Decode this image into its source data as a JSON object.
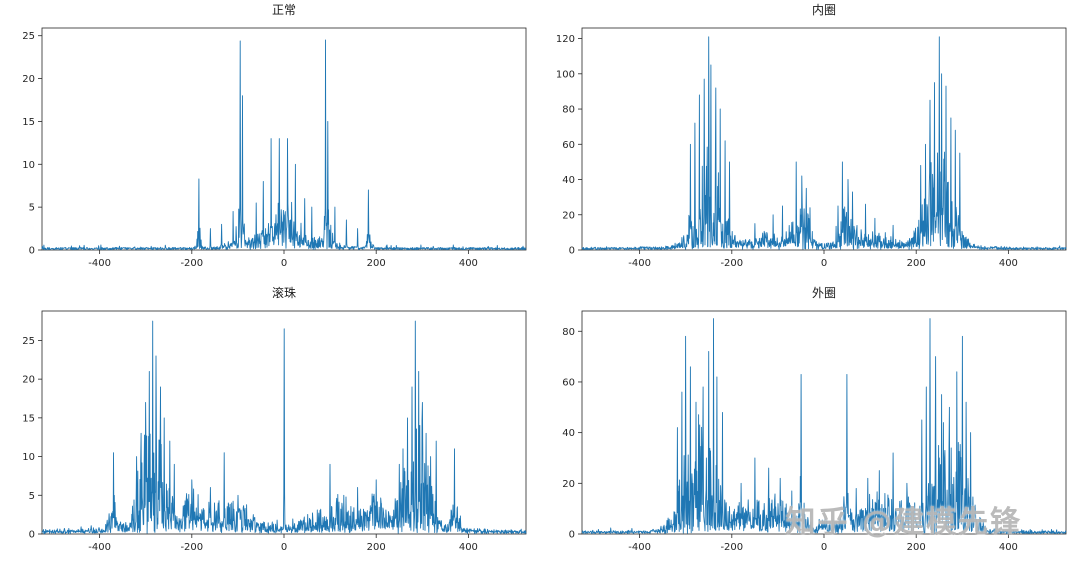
{
  "watermark": {
    "text": "知乎 @建模先锋"
  },
  "colors": {
    "line": "#1f77b4",
    "axis": "#262626",
    "background": "#ffffff"
  },
  "chart_data": [
    {
      "type": "line",
      "title": "正常",
      "xlabel": "",
      "ylabel": "",
      "xlim": [
        -525,
        525
      ],
      "ylim": [
        0,
        25.9
      ],
      "xticks": [
        -400,
        -200,
        0,
        200,
        400
      ],
      "yticks": [
        0,
        5,
        10,
        15,
        20,
        25
      ],
      "grid": false,
      "legend": null,
      "noise_floor": 0.3,
      "seed": 11,
      "sharp_peaks": [
        [
          -185,
          8.3
        ],
        [
          -95,
          24.4
        ],
        [
          -90,
          18
        ],
        [
          90,
          24.5
        ],
        [
          95,
          15
        ],
        [
          183,
          7.0
        ],
        [
          -28,
          13
        ],
        [
          -10,
          13
        ],
        [
          8,
          13
        ],
        [
          25,
          10
        ],
        [
          -45,
          8
        ],
        [
          45,
          6
        ],
        [
          -60,
          5.5
        ],
        [
          60,
          5
        ],
        [
          -110,
          4.5
        ],
        [
          110,
          5
        ],
        [
          135,
          3.5
        ],
        [
          -135,
          3
        ],
        [
          160,
          2.5
        ],
        [
          -160,
          2.5
        ]
      ],
      "clusters": [
        [
          -95,
          10,
          6
        ],
        [
          95,
          10,
          6
        ],
        [
          0,
          30,
          5
        ],
        [
          0,
          100,
          2.5
        ],
        [
          -185,
          6,
          3
        ],
        [
          185,
          6,
          3
        ]
      ]
    },
    {
      "type": "line",
      "title": "内圈",
      "xlabel": "",
      "ylabel": "",
      "xlim": [
        -525,
        525
      ],
      "ylim": [
        0,
        126
      ],
      "xticks": [
        -400,
        -200,
        0,
        200,
        400
      ],
      "yticks": [
        0,
        20,
        40,
        60,
        80,
        100,
        120
      ],
      "grid": false,
      "legend": null,
      "noise_floor": 1.2,
      "seed": 22,
      "sharp_peaks": [
        [
          -250,
          121
        ],
        [
          -245,
          105
        ],
        [
          -260,
          97
        ],
        [
          -235,
          92
        ],
        [
          -270,
          88
        ],
        [
          -225,
          80
        ],
        [
          -280,
          72
        ],
        [
          -290,
          60
        ],
        [
          -215,
          62
        ],
        [
          -205,
          50
        ],
        [
          250,
          121
        ],
        [
          255,
          100
        ],
        [
          240,
          95
        ],
        [
          265,
          93
        ],
        [
          230,
          85
        ],
        [
          275,
          75
        ],
        [
          285,
          68
        ],
        [
          220,
          60
        ],
        [
          295,
          55
        ],
        [
          210,
          48
        ],
        [
          -60,
          50
        ],
        [
          -48,
          42
        ],
        [
          -38,
          35
        ],
        [
          40,
          50
        ],
        [
          52,
          40
        ],
        [
          62,
          33
        ],
        [
          -90,
          25
        ],
        [
          90,
          26
        ],
        [
          -110,
          20
        ],
        [
          110,
          18
        ],
        [
          -150,
          15
        ],
        [
          150,
          14
        ],
        [
          30,
          25
        ],
        [
          -30,
          24
        ]
      ],
      "clusters": [
        [
          -250,
          40,
          60
        ],
        [
          250,
          40,
          60
        ],
        [
          -50,
          25,
          26
        ],
        [
          50,
          25,
          26
        ],
        [
          -120,
          50,
          9
        ],
        [
          120,
          50,
          9
        ],
        [
          0,
          350,
          3.5
        ]
      ]
    },
    {
      "type": "line",
      "title": "滚珠",
      "xlabel": "",
      "ylabel": "",
      "xlim": [
        -525,
        525
      ],
      "ylim": [
        0,
        28.8
      ],
      "xticks": [
        -400,
        -200,
        0,
        200,
        400
      ],
      "yticks": [
        0,
        5,
        10,
        15,
        20,
        25
      ],
      "grid": false,
      "legend": null,
      "noise_floor": 0.35,
      "seed": 33,
      "sharp_peaks": [
        [
          0,
          26.5
        ],
        [
          -285,
          27.5
        ],
        [
          -278,
          23
        ],
        [
          -292,
          21
        ],
        [
          -268,
          19
        ],
        [
          -300,
          17
        ],
        [
          -260,
          15
        ],
        [
          -310,
          13
        ],
        [
          -248,
          12
        ],
        [
          -320,
          10
        ],
        [
          -238,
          9
        ],
        [
          285,
          27.5
        ],
        [
          292,
          21
        ],
        [
          278,
          19
        ],
        [
          300,
          17
        ],
        [
          268,
          15
        ],
        [
          308,
          13
        ],
        [
          258,
          11
        ],
        [
          318,
          10
        ],
        [
          250,
          9
        ],
        [
          -370,
          10.5
        ],
        [
          370,
          11
        ],
        [
          330,
          12
        ],
        [
          -130,
          10.5
        ],
        [
          100,
          9
        ],
        [
          -200,
          7
        ],
        [
          200,
          7
        ],
        [
          -160,
          6
        ],
        [
          160,
          6
        ],
        [
          -100,
          5
        ],
        [
          130,
          5
        ]
      ],
      "clusters": [
        [
          -285,
          35,
          17
        ],
        [
          285,
          35,
          17
        ],
        [
          -120,
          70,
          4
        ],
        [
          120,
          70,
          4
        ],
        [
          -200,
          30,
          5
        ],
        [
          200,
          30,
          5
        ],
        [
          0,
          460,
          1.2
        ],
        [
          -370,
          12,
          5
        ],
        [
          370,
          12,
          5
        ]
      ]
    },
    {
      "type": "line",
      "title": "外圈",
      "xlabel": "",
      "ylabel": "",
      "xlim": [
        -525,
        525
      ],
      "ylim": [
        0,
        88
      ],
      "xticks": [
        -400,
        -200,
        0,
        200,
        400
      ],
      "yticks": [
        0,
        20,
        40,
        60,
        80
      ],
      "grid": false,
      "legend": null,
      "noise_floor": 1.1,
      "seed": 44,
      "sharp_peaks": [
        [
          -240,
          85
        ],
        [
          -300,
          78
        ],
        [
          -250,
          72
        ],
        [
          -290,
          66
        ],
        [
          -232,
          62
        ],
        [
          -308,
          56
        ],
        [
          -262,
          58
        ],
        [
          -278,
          52
        ],
        [
          -220,
          48
        ],
        [
          -318,
          42
        ],
        [
          230,
          85
        ],
        [
          300,
          78
        ],
        [
          242,
          70
        ],
        [
          288,
          64
        ],
        [
          222,
          58
        ],
        [
          308,
          52
        ],
        [
          255,
          55
        ],
        [
          272,
          50
        ],
        [
          212,
          45
        ],
        [
          318,
          40
        ],
        [
          -50,
          63
        ],
        [
          50,
          63
        ],
        [
          -150,
          30
        ],
        [
          150,
          32
        ],
        [
          -120,
          26
        ],
        [
          120,
          25
        ],
        [
          -95,
          22
        ],
        [
          95,
          22
        ],
        [
          -180,
          20
        ],
        [
          180,
          20
        ],
        [
          70,
          18
        ],
        [
          -70,
          17
        ]
      ],
      "clusters": [
        [
          -270,
          48,
          48
        ],
        [
          270,
          48,
          48
        ],
        [
          -120,
          60,
          14
        ],
        [
          120,
          60,
          14
        ],
        [
          -50,
          8,
          25
        ],
        [
          50,
          8,
          25
        ],
        [
          0,
          280,
          5
        ],
        [
          -180,
          25,
          10
        ],
        [
          180,
          25,
          10
        ]
      ]
    }
  ]
}
